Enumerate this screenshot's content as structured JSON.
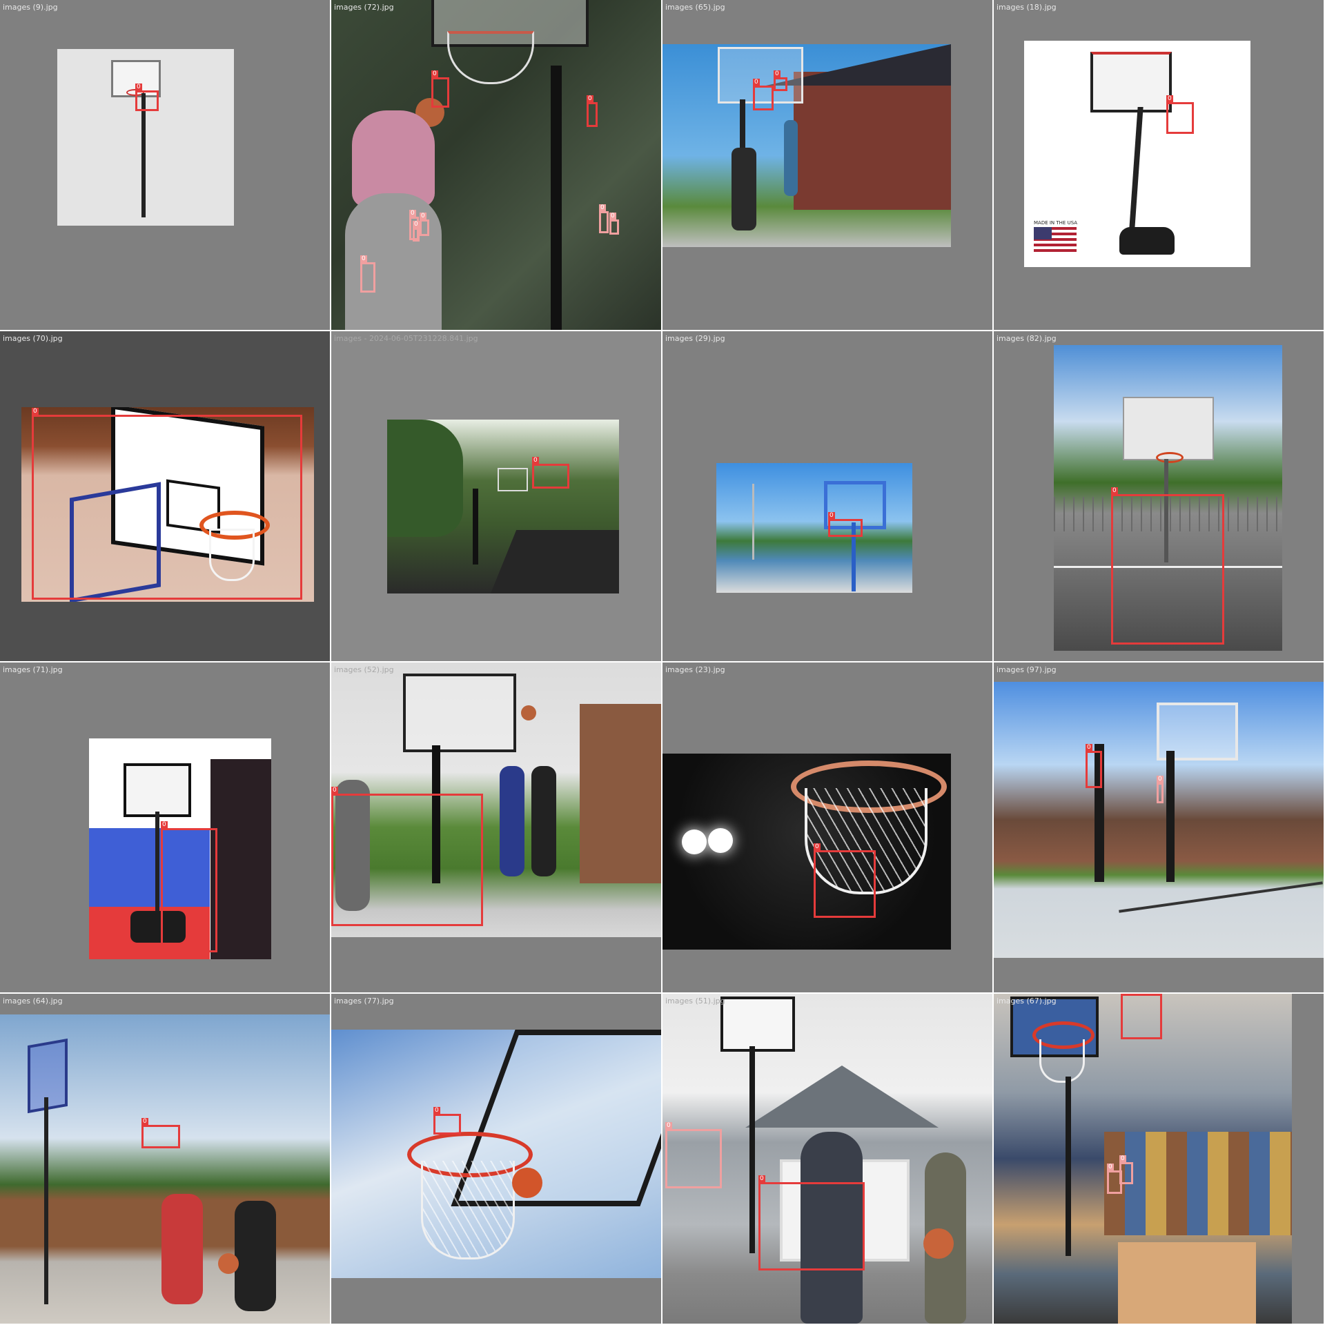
{
  "tiles": [
    {
      "filename": "images (9).jpg",
      "boxes": [
        {
          "class_id": "0"
        }
      ]
    },
    {
      "filename": "images (72).jpg",
      "boxes": [
        {
          "class_id": "0"
        },
        {
          "class_id": "0"
        },
        {
          "class_id": "0"
        },
        {
          "class_id": "0"
        },
        {
          "class_id": "0"
        },
        {
          "class_id": "0"
        },
        {
          "class_id": "0"
        },
        {
          "class_id": "0"
        }
      ]
    },
    {
      "filename": "images (65).jpg",
      "boxes": [
        {
          "class_id": "0"
        },
        {
          "class_id": "0"
        }
      ]
    },
    {
      "filename": "images (18).jpg",
      "boxes": [
        {
          "class_id": "0"
        }
      ],
      "flag_caption": "MADE IN THE USA"
    },
    {
      "filename": "images (70).jpg",
      "boxes": [
        {
          "class_id": "0"
        }
      ]
    },
    {
      "filename": "images - 2024-06-05T231228.841.jpg",
      "boxes": [
        {
          "class_id": "0"
        }
      ]
    },
    {
      "filename": "images (29).jpg",
      "boxes": [
        {
          "class_id": "0"
        }
      ]
    },
    {
      "filename": "images (82).jpg",
      "boxes": [
        {
          "class_id": "0"
        }
      ]
    },
    {
      "filename": "images (71).jpg",
      "boxes": [
        {
          "class_id": "0"
        }
      ]
    },
    {
      "filename": "images (52).jpg",
      "boxes": [
        {
          "class_id": "0"
        }
      ]
    },
    {
      "filename": "images (23).jpg",
      "boxes": [
        {
          "class_id": "0"
        }
      ]
    },
    {
      "filename": "images (97).jpg",
      "boxes": [
        {
          "class_id": "0"
        },
        {
          "class_id": "0"
        }
      ]
    },
    {
      "filename": "images (64).jpg",
      "boxes": [
        {
          "class_id": "0"
        }
      ]
    },
    {
      "filename": "images (77).jpg",
      "boxes": [
        {
          "class_id": "0"
        }
      ]
    },
    {
      "filename": "images (51).jpg",
      "boxes": [
        {
          "class_id": "0"
        },
        {
          "class_id": "0"
        }
      ]
    },
    {
      "filename": "images (67).jpg",
      "boxes": [
        {
          "class_id": "0"
        },
        {
          "class_id": "0"
        },
        {
          "class_id": "0"
        }
      ]
    }
  ],
  "colors": {
    "box_red": "#e53b3b",
    "box_pale": "#f0a0a0",
    "tile_bg": "#808080",
    "tile_bg_dark": "#4f4f4f"
  }
}
